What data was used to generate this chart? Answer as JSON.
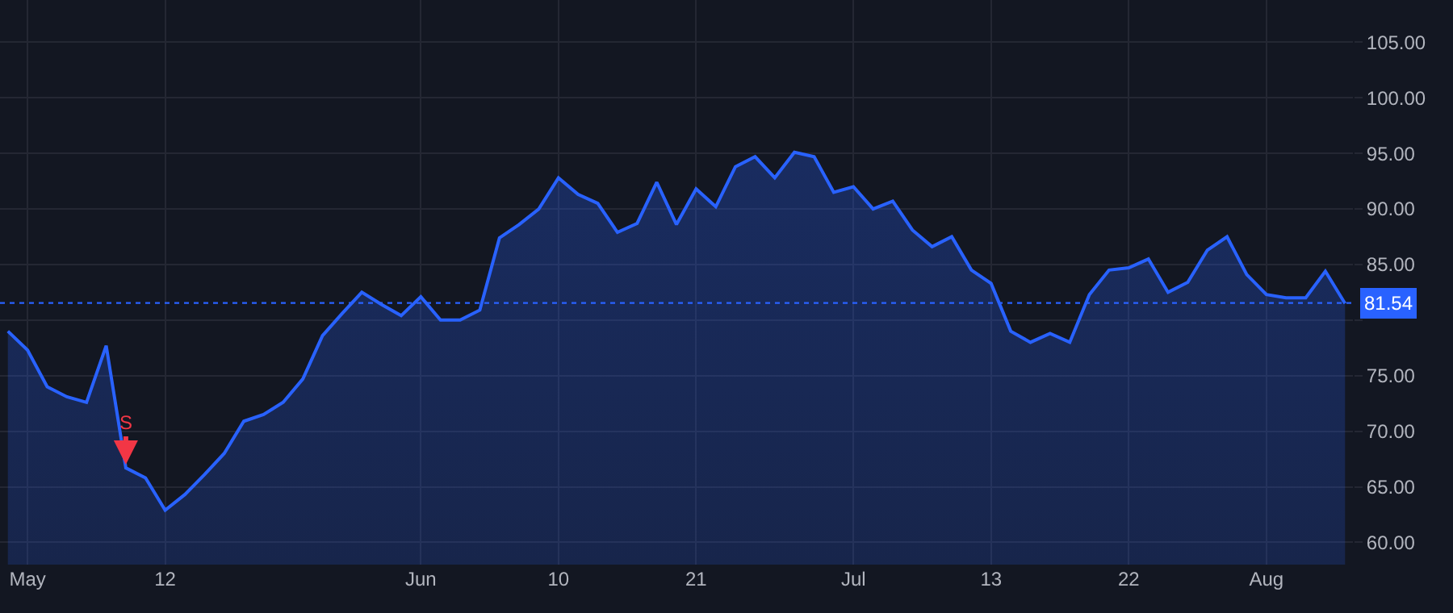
{
  "chart_data": {
    "type": "area",
    "categories": [
      null,
      "May",
      null,
      null,
      null,
      null,
      null,
      null,
      "12",
      null,
      null,
      null,
      null,
      null,
      null,
      null,
      null,
      null,
      null,
      null,
      null,
      "Jun",
      null,
      null,
      null,
      null,
      null,
      null,
      "10",
      null,
      null,
      null,
      null,
      null,
      null,
      "21",
      null,
      null,
      null,
      null,
      null,
      null,
      null,
      "Jul",
      null,
      null,
      null,
      null,
      null,
      null,
      "13",
      null,
      null,
      null,
      null,
      null,
      null,
      "22",
      null,
      null,
      null,
      null,
      null,
      null,
      "Aug",
      null,
      null,
      null,
      null
    ],
    "series": [
      {
        "color": "#2962ff",
        "values": [
          79.0,
          77.3,
          74.0,
          73.1,
          72.6,
          77.7,
          66.7,
          65.8,
          62.9,
          64.3,
          66.1,
          68.0,
          70.9,
          71.5,
          72.6,
          74.7,
          78.6,
          80.6,
          82.5,
          81.4,
          80.4,
          82.1,
          80.0,
          80.0,
          80.9,
          87.4,
          88.6,
          90.0,
          92.8,
          91.3,
          90.5,
          87.9,
          88.7,
          92.4,
          88.6,
          91.8,
          90.2,
          93.8,
          94.7,
          92.8,
          95.1,
          94.7,
          91.5,
          92.0,
          90.0,
          90.7,
          88.1,
          86.6,
          87.5,
          84.5,
          83.3,
          79.0,
          78.0,
          78.8,
          78.0,
          82.3,
          84.5,
          84.7,
          85.5,
          82.5,
          83.4,
          86.3,
          87.5,
          84.1,
          82.3,
          82.0,
          82.0,
          84.4,
          81.5
        ]
      }
    ],
    "ylim": [
      58,
      108.8
    ],
    "yticks": [
      {
        "value": 60,
        "label": "60.00"
      },
      {
        "value": 65,
        "label": "65.00"
      },
      {
        "value": 70,
        "label": "70.00"
      },
      {
        "value": 75,
        "label": "75.00"
      },
      {
        "value": 80,
        "label": null
      },
      {
        "value": 85,
        "label": "85.00"
      },
      {
        "value": 90,
        "label": "90.00"
      },
      {
        "value": 95,
        "label": "95.00"
      },
      {
        "value": 100,
        "label": "100.00"
      },
      {
        "value": 105,
        "label": "105.00"
      }
    ],
    "ref_lines": [
      {
        "axis": "y",
        "value": 81.54,
        "label": "81.54",
        "color": "#2962ff",
        "line_style": "dotted"
      }
    ],
    "annotations": [
      {
        "text": "S",
        "y": 66.7
      }
    ],
    "grid": true,
    "marker": "none",
    "line_style": "solid"
  }
}
